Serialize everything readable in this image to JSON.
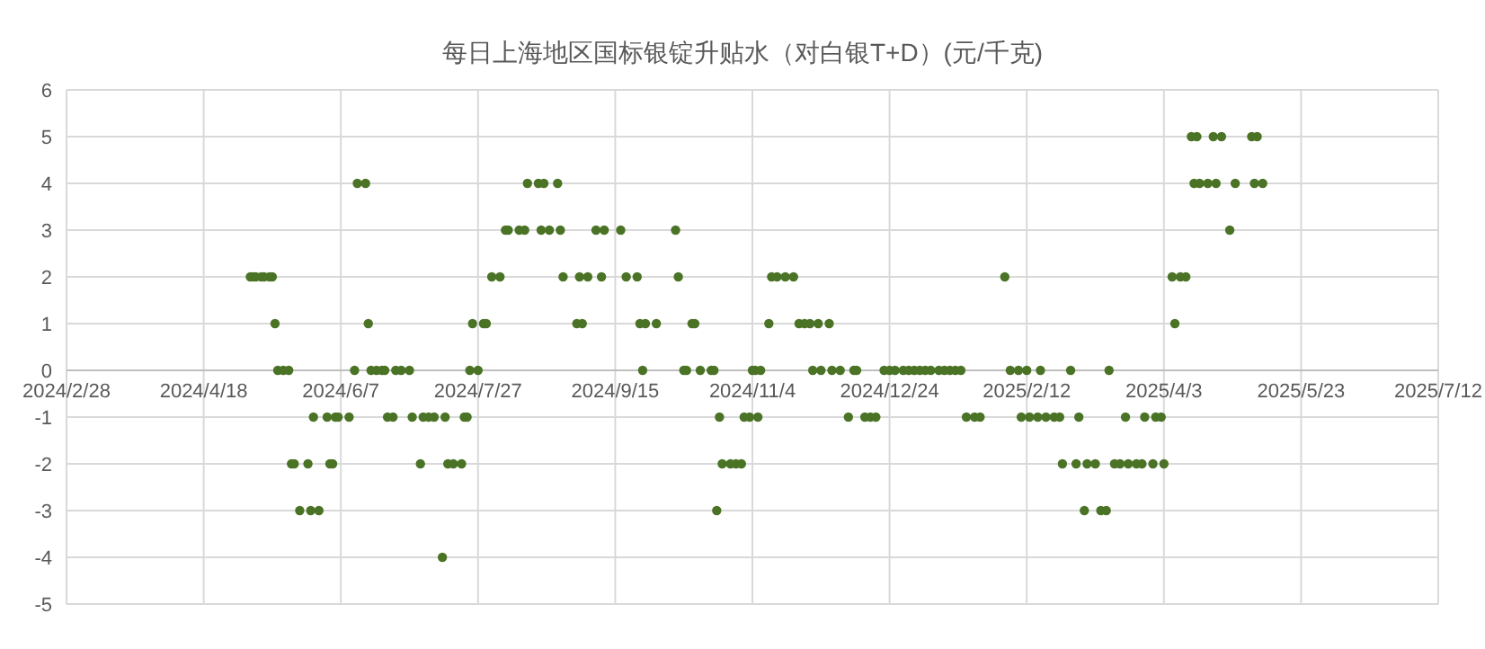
{
  "chart_data": {
    "type": "scatter",
    "title": "每日上海地区国标银锭升贴水（对白银T+D）(元/千克)",
    "color": "#4a7326",
    "marker": "circle",
    "grid": true,
    "x": [
      "2024-05-05",
      "2024-05-06",
      "2024-05-07",
      "2024-05-09",
      "2024-05-10",
      "2024-05-12",
      "2024-05-13",
      "2024-08-01",
      "2024-08-04",
      "2024-08-27",
      "2024-09-02",
      "2024-09-05",
      "2024-09-10",
      "2024-09-19",
      "2024-09-23",
      "2024-10-08",
      "2024-11-11",
      "2024-11-13",
      "2024-11-16",
      "2024-11-19",
      "2025-02-04",
      "2025-04-06",
      "2025-04-09",
      "2025-04-11",
      "2024-05-14",
      "2024-06-17",
      "2024-07-25",
      "2024-07-29",
      "2024-07-30",
      "2024-09-01",
      "2024-09-03",
      "2024-09-24",
      "2024-09-26",
      "2024-09-30",
      "2024-10-13",
      "2024-10-14",
      "2024-11-10",
      "2024-11-21",
      "2024-11-23",
      "2024-11-25",
      "2024-11-28",
      "2024-12-02",
      "2025-04-07",
      "2024-05-15",
      "2024-05-17",
      "2024-05-19",
      "2024-06-12",
      "2024-06-18",
      "2024-06-20",
      "2024-06-22",
      "2024-06-23",
      "2024-06-27",
      "2024-06-29",
      "2024-07-02",
      "2024-07-24",
      "2024-07-27",
      "2024-09-25",
      "2024-10-10",
      "2024-10-11",
      "2024-10-16",
      "2024-10-20",
      "2024-10-21",
      "2024-11-04",
      "2024-11-05",
      "2024-11-07",
      "2024-11-26",
      "2024-11-29",
      "2024-12-03",
      "2024-12-06",
      "2024-12-11",
      "2024-12-12",
      "2024-12-22",
      "2024-12-24",
      "2024-12-26",
      "2024-12-29",
      "2024-12-31",
      "2025-01-02",
      "2025-01-04",
      "2025-01-06",
      "2025-01-08",
      "2025-01-11",
      "2025-01-13",
      "2025-01-15",
      "2025-01-17",
      "2025-01-19",
      "2025-02-06",
      "2025-02-09",
      "2025-02-12",
      "2025-02-17",
      "2025-02-28",
      "2025-03-14",
      "2024-05-28",
      "2024-06-02",
      "2024-06-05",
      "2024-06-06",
      "2024-06-10",
      "2024-06-24",
      "2024-06-26",
      "2024-07-03",
      "2024-07-07",
      "2024-07-09",
      "2024-07-11",
      "2024-07-15",
      "2024-07-22",
      "2024-07-23",
      "2024-10-23",
      "2024-11-01",
      "2024-11-03",
      "2024-11-06",
      "2024-12-09",
      "2024-12-15",
      "2024-12-17",
      "2024-12-19",
      "2025-01-21",
      "2025-01-24",
      "2025-01-26",
      "2025-02-10",
      "2025-02-13",
      "2025-02-16",
      "2025-02-19",
      "2025-02-22",
      "2025-02-24",
      "2025-03-03",
      "2025-03-20",
      "2025-03-27",
      "2025-03-31",
      "2025-04-02",
      "2024-05-20",
      "2024-05-21",
      "2024-05-26",
      "2024-06-03",
      "2024-06-04",
      "2024-07-06",
      "2024-07-16",
      "2024-07-18",
      "2024-07-21",
      "2024-10-24",
      "2024-10-27",
      "2024-10-29",
      "2024-10-31",
      "2025-02-25",
      "2025-03-02",
      "2025-03-06",
      "2025-03-09",
      "2025-03-16",
      "2025-03-18",
      "2025-03-21",
      "2025-03-24",
      "2025-03-26",
      "2025-03-30",
      "2025-04-03",
      "2024-05-23",
      "2024-05-27",
      "2024-05-30",
      "2024-10-22",
      "2025-03-05",
      "2025-03-11",
      "2025-03-13",
      "2024-07-14",
      "2024-08-06",
      "2024-08-07",
      "2024-08-11",
      "2024-08-13",
      "2024-08-19",
      "2024-08-22",
      "2024-08-26",
      "2024-09-08",
      "2024-09-11",
      "2024-09-17",
      "2024-10-07",
      "2025-04-27",
      "2024-06-13",
      "2024-06-16",
      "2024-08-14",
      "2024-08-18",
      "2024-08-20",
      "2024-08-25",
      "2025-04-14",
      "2025-04-16",
      "2025-04-19",
      "2025-04-22",
      "2025-04-29",
      "2025-05-06",
      "2025-05-09",
      "2025-04-13",
      "2025-04-15",
      "2025-04-21",
      "2025-04-24",
      "2025-05-05",
      "2025-05-07"
    ],
    "values": [
      2,
      2,
      2,
      2,
      2,
      2,
      2,
      2,
      2,
      2,
      2,
      2,
      2,
      2,
      2,
      2,
      2,
      2,
      2,
      2,
      2,
      2,
      2,
      2,
      1,
      1,
      1,
      1,
      1,
      1,
      1,
      1,
      1,
      1,
      1,
      1,
      1,
      1,
      1,
      1,
      1,
      1,
      1,
      0,
      0,
      0,
      0,
      0,
      0,
      0,
      0,
      0,
      0,
      0,
      0,
      0,
      0,
      0,
      0,
      0,
      0,
      0,
      0,
      0,
      0,
      0,
      0,
      0,
      0,
      0,
      0,
      0,
      0,
      0,
      0,
      0,
      0,
      0,
      0,
      0,
      0,
      0,
      0,
      0,
      0,
      0,
      0,
      0,
      0,
      0,
      0,
      -1,
      -1,
      -1,
      -1,
      -1,
      -1,
      -1,
      -1,
      -1,
      -1,
      -1,
      -1,
      -1,
      -1,
      -1,
      -1,
      -1,
      -1,
      -1,
      -1,
      -1,
      -1,
      -1,
      -1,
      -1,
      -1,
      -1,
      -1,
      -1,
      -1,
      -1,
      -1,
      -1,
      -1,
      -1,
      -1,
      -2,
      -2,
      -2,
      -2,
      -2,
      -2,
      -2,
      -2,
      -2,
      -2,
      -2,
      -2,
      -2,
      -2,
      -2,
      -2,
      -2,
      -2,
      -2,
      -2,
      -2,
      -2,
      -2,
      -2,
      -3,
      -3,
      -3,
      -3,
      -3,
      -3,
      -3,
      -4,
      3,
      3,
      3,
      3,
      3,
      3,
      3,
      3,
      3,
      3,
      3,
      3,
      4,
      4,
      4,
      4,
      4,
      4,
      4,
      4,
      4,
      4,
      4,
      4,
      4,
      5,
      5,
      5,
      5,
      5,
      5
    ],
    "xlim": [
      "2024-02-28",
      "2025-07-12"
    ],
    "xticks": [
      {
        "value": "2024-02-28",
        "label": "2024/2/28"
      },
      {
        "value": "2024-04-18",
        "label": "2024/4/18"
      },
      {
        "value": "2024-06-07",
        "label": "2024/6/7"
      },
      {
        "value": "2024-07-27",
        "label": "2024/7/27"
      },
      {
        "value": "2024-09-15",
        "label": "2024/9/15"
      },
      {
        "value": "2024-11-04",
        "label": "2024/11/4"
      },
      {
        "value": "2024-12-24",
        "label": "2024/12/24"
      },
      {
        "value": "2025-02-12",
        "label": "2025/2/12"
      },
      {
        "value": "2025-04-03",
        "label": "2025/4/3"
      },
      {
        "value": "2025-05-23",
        "label": "2025/5/23"
      },
      {
        "value": "2025-07-12",
        "label": "2025/7/12"
      }
    ],
    "ylim": [
      -5,
      6
    ],
    "yticks": [
      -5,
      -4,
      -3,
      -2,
      -1,
      0,
      1,
      2,
      3,
      4,
      5,
      6
    ]
  }
}
